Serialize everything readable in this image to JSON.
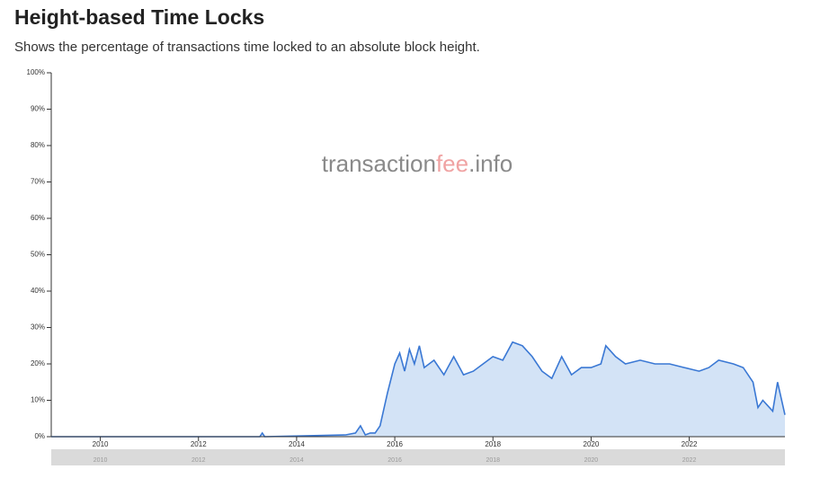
{
  "chart_data": {
    "type": "area",
    "title": "Height-based Time Locks",
    "subtitle": "Shows the percentage of transactions time locked to an absolute block height.",
    "watermark": [
      "transaction",
      "fee",
      ".info"
    ],
    "color": "#3a78d4",
    "fill": "#d3e3f6",
    "x": [
      2009.0,
      2013.25,
      2013.3,
      2013.35,
      2015.0,
      2015.2,
      2015.3,
      2015.4,
      2015.5,
      2015.6,
      2015.7,
      2015.85,
      2016.0,
      2016.1,
      2016.2,
      2016.3,
      2016.4,
      2016.5,
      2016.6,
      2016.8,
      2017.0,
      2017.2,
      2017.4,
      2017.6,
      2017.8,
      2018.0,
      2018.2,
      2018.4,
      2018.6,
      2018.8,
      2019.0,
      2019.2,
      2019.4,
      2019.6,
      2019.8,
      2020.0,
      2020.2,
      2020.3,
      2020.5,
      2020.7,
      2021.0,
      2021.3,
      2021.6,
      2021.9,
      2022.2,
      2022.4,
      2022.6,
      2022.9,
      2023.1,
      2023.3,
      2023.4,
      2023.5,
      2023.7,
      2023.8,
      2023.95
    ],
    "values": [
      0,
      0,
      1,
      0,
      0.5,
      1,
      3,
      0.5,
      1,
      1,
      3,
      12,
      20,
      23,
      18,
      24,
      20,
      25,
      19,
      21,
      17,
      22,
      17,
      18,
      20,
      22,
      21,
      26,
      25,
      22,
      18,
      16,
      22,
      17,
      19,
      19,
      20,
      25,
      22,
      20,
      21,
      20,
      20,
      19,
      18,
      19,
      21,
      20,
      19,
      15,
      8,
      10,
      7,
      15,
      6
    ],
    "xlim": [
      2009.0,
      2023.95
    ],
    "xticks": [
      2010,
      2012,
      2014,
      2016,
      2018,
      2020,
      2022
    ],
    "ylim": [
      0,
      100
    ],
    "yticks": [
      {
        "value": 0,
        "label": "0%"
      },
      {
        "value": 10,
        "label": "10%"
      },
      {
        "value": 20,
        "label": "20%"
      },
      {
        "value": 30,
        "label": "30%"
      },
      {
        "value": 40,
        "label": "40%"
      },
      {
        "value": 50,
        "label": "50%"
      },
      {
        "value": 60,
        "label": "60%"
      },
      {
        "value": 70,
        "label": "70%"
      },
      {
        "value": 80,
        "label": "80%"
      },
      {
        "value": 90,
        "label": "90%"
      },
      {
        "value": 100,
        "label": "100%"
      }
    ]
  }
}
